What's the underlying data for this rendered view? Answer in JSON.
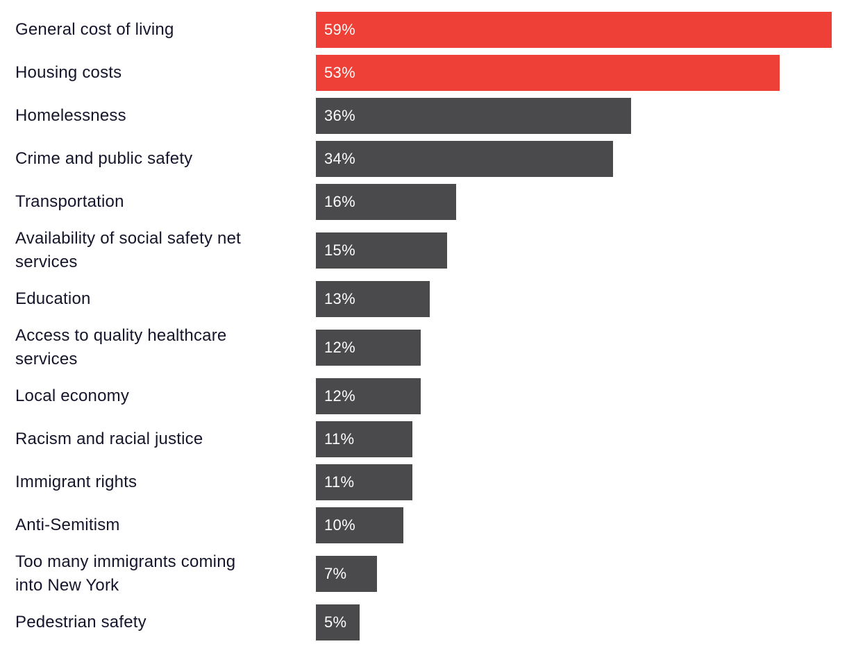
{
  "chart_data": {
    "type": "bar",
    "orientation": "horizontal",
    "axes_visible": false,
    "grid": false,
    "legend": null,
    "categories": [
      "General cost of living",
      "Housing costs",
      "Homelessness",
      "Crime and public safety",
      "Transportation",
      "Availability of social safety net services",
      "Education",
      "Access to quality healthcare services",
      "Local economy",
      "Racism and racial justice",
      "Immigrant rights",
      "Anti-Semitism",
      "Too many immigrants coming into New York",
      "Pedestrian safety"
    ],
    "values": [
      59,
      53,
      36,
      34,
      16,
      15,
      13,
      12,
      12,
      11,
      11,
      10,
      7,
      5
    ],
    "value_labels": [
      "59%",
      "53%",
      "36%",
      "34%",
      "16%",
      "15%",
      "13%",
      "12%",
      "12%",
      "11%",
      "11%",
      "10%",
      "7%",
      "5%"
    ],
    "highlighted_indices": [
      0,
      1
    ],
    "xlim": [
      0,
      59
    ]
  },
  "colors": {
    "bar_highlight": "#ee4036",
    "bar_default": "#4a4a4c",
    "label_text": "#15152b",
    "bar_value_text": "#fdfdfd",
    "background": "#ffffff"
  }
}
